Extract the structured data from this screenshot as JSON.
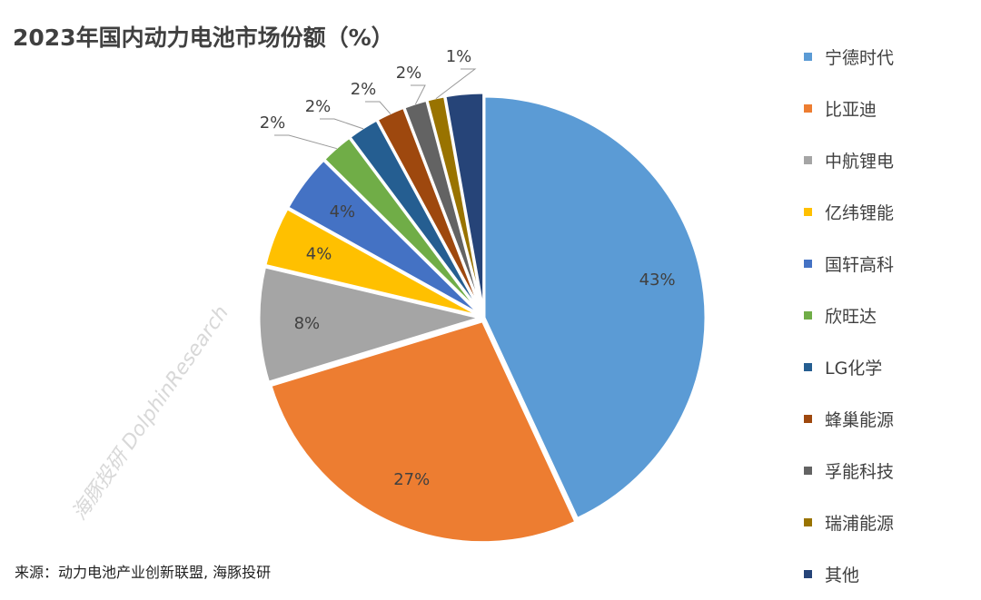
{
  "title": "2023年国内动力电池市场份额（%）",
  "source": "来源：动力电池产业创新联盟, 海豚投研",
  "watermark": "海豚投研 DolphinResearch",
  "chart_data": {
    "type": "pie",
    "title": "2023年国内动力电池市场份额（%）",
    "start": "12 o'clock, clockwise",
    "legend_position": "right",
    "slices": [
      {
        "name": "宁德时代",
        "value": 43.1,
        "label": "43%",
        "color": "#5B9BD5"
      },
      {
        "name": "比亚迪",
        "value": 27.2,
        "label": "27%",
        "color": "#ED7D31"
      },
      {
        "name": "中航锂电",
        "value": 8.4,
        "label": "8%",
        "color": "#A5A5A5"
      },
      {
        "name": "亿纬锂能",
        "value": 4.4,
        "label": "4%",
        "color": "#FFC000"
      },
      {
        "name": "国轩高科",
        "value": 4.3,
        "label": "4%",
        "color": "#4472C4"
      },
      {
        "name": "欣旺达",
        "value": 2.4,
        "label": "2%",
        "color": "#70AD47"
      },
      {
        "name": "LG化学",
        "value": 2.3,
        "label": "2%",
        "color": "#255E91"
      },
      {
        "name": "蜂巢能源",
        "value": 2.1,
        "label": "2%",
        "color": "#9E480E"
      },
      {
        "name": "孚能科技",
        "value": 1.7,
        "label": "2%",
        "color": "#636363"
      },
      {
        "name": "瑞浦能源",
        "value": 1.3,
        "label": "1%",
        "color": "#997300"
      },
      {
        "name": "其他",
        "value": 2.8,
        "label": "",
        "color": "#264478"
      }
    ]
  }
}
